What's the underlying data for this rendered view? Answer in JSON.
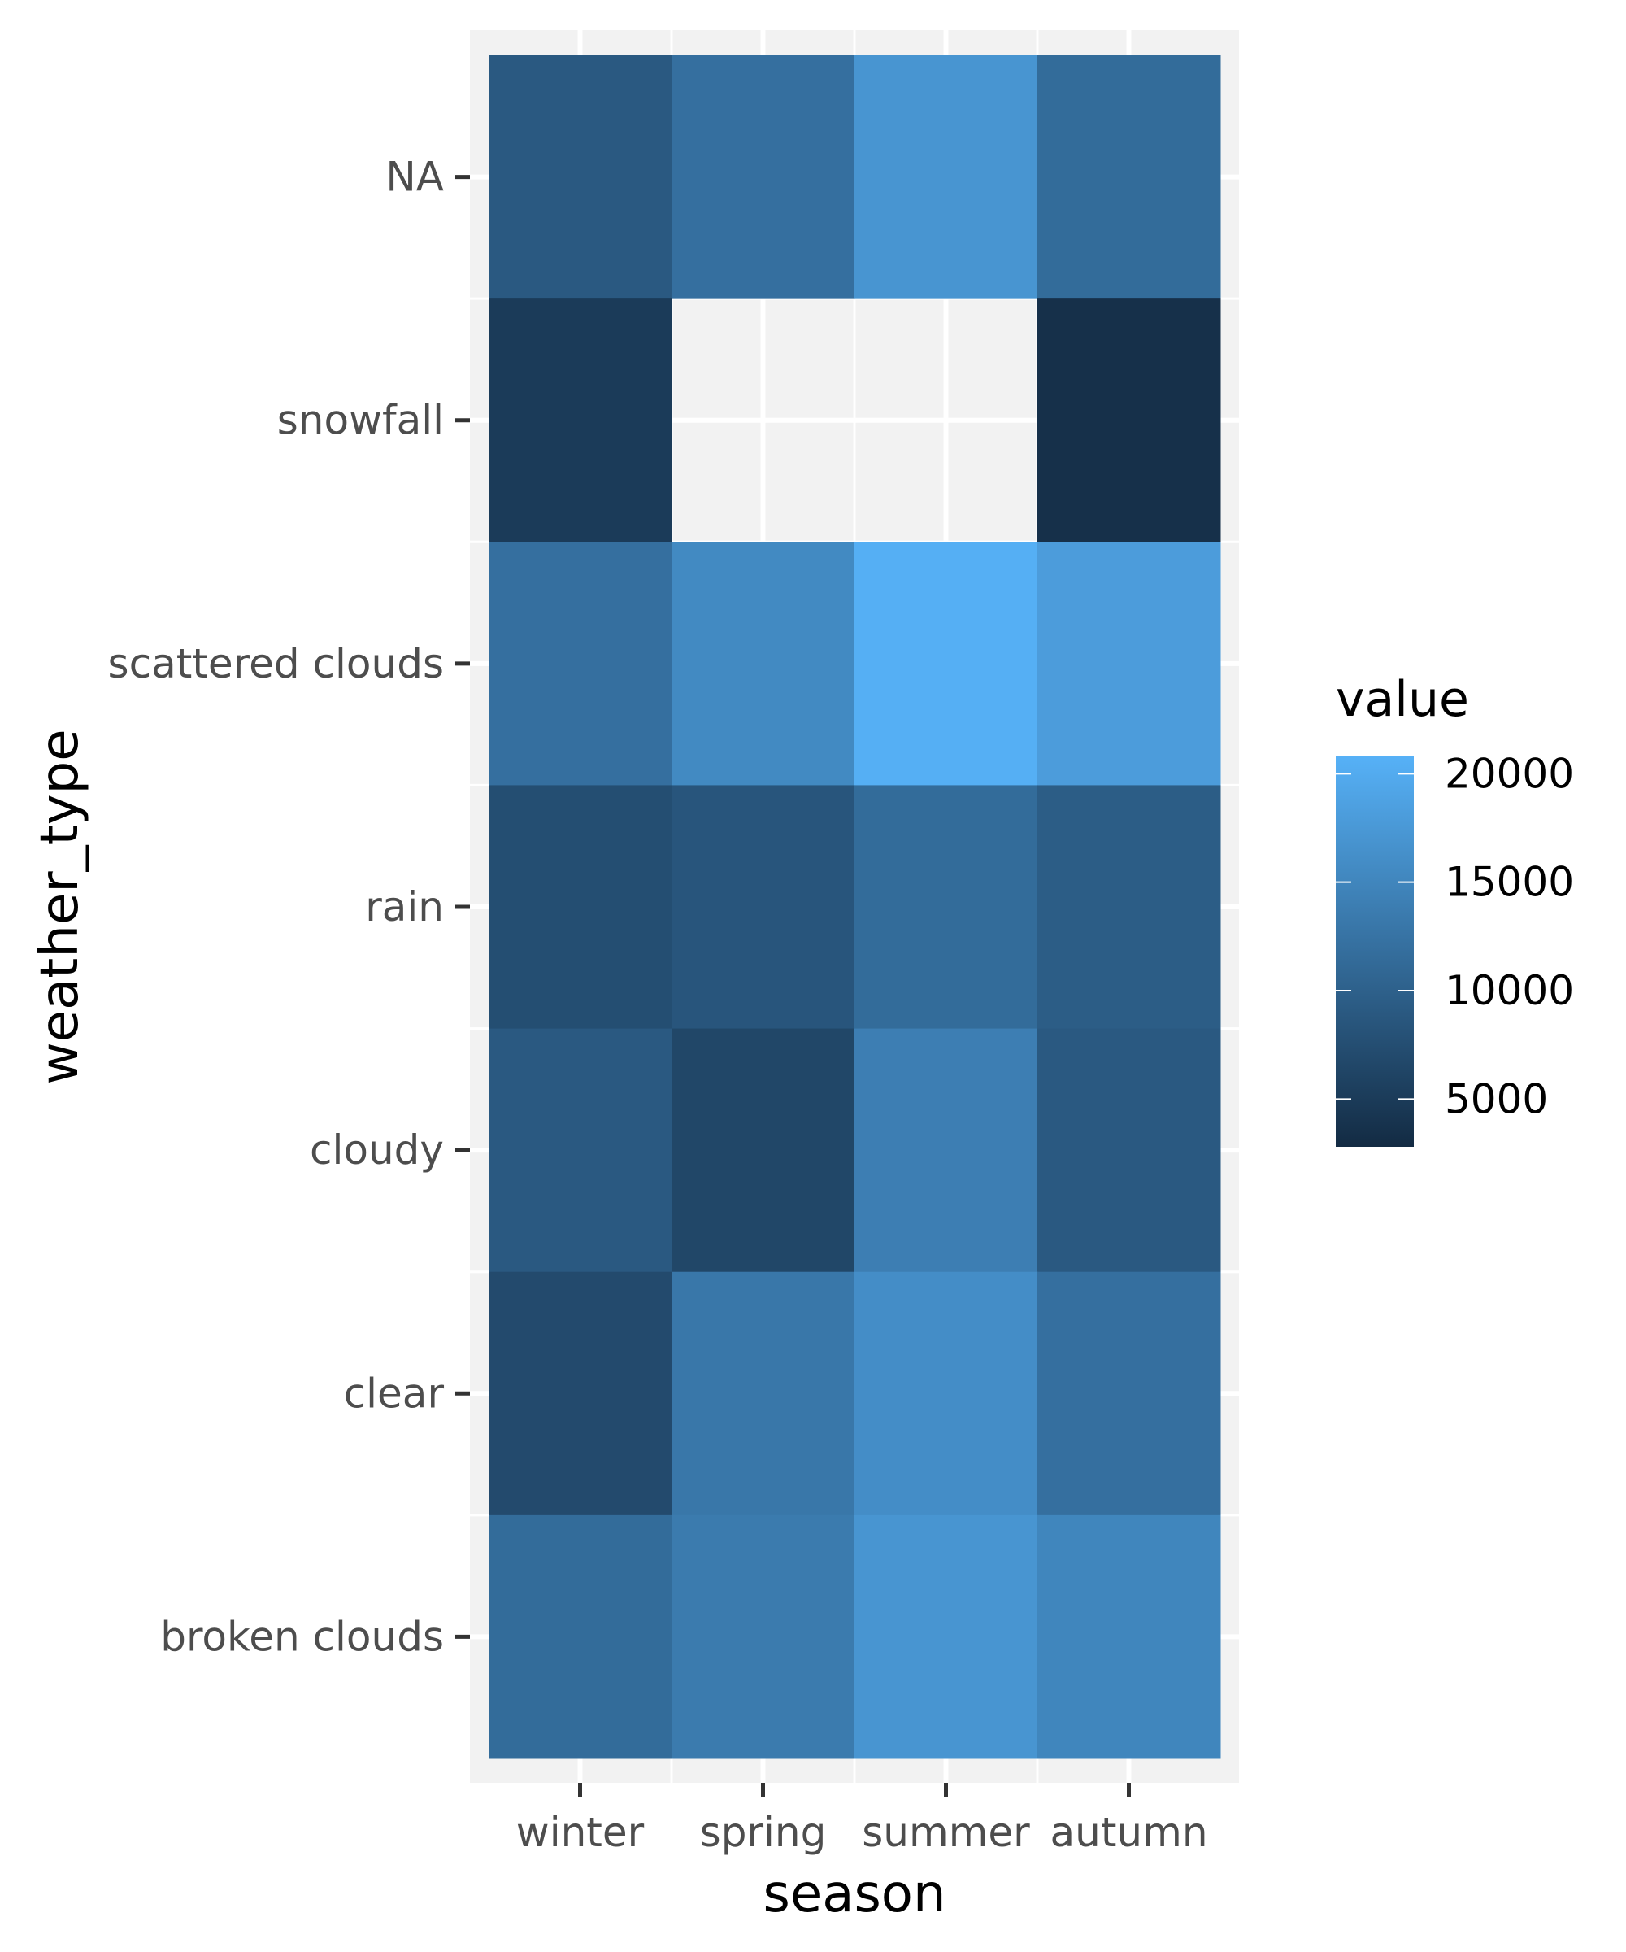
{
  "chart_data": {
    "type": "heatmap",
    "title": "",
    "xlabel": "season",
    "ylabel": "weather_type",
    "x_categories": [
      "winter",
      "spring",
      "summer",
      "autumn"
    ],
    "y_categories": [
      "NA",
      "snowfall",
      "scattered clouds",
      "rain",
      "cloudy",
      "clear",
      "broken clouds"
    ],
    "values": [
      [
        9000,
        12000,
        17000,
        11500
      ],
      [
        5000,
        null,
        null,
        3500
      ],
      [
        12000,
        15500,
        20500,
        18000
      ],
      [
        7500,
        8500,
        11500,
        9500
      ],
      [
        9000,
        6500,
        14000,
        9000
      ],
      [
        7000,
        13000,
        16000,
        12000
      ],
      [
        11500,
        13500,
        17000,
        15000
      ]
    ],
    "legend": {
      "title": "value",
      "ticks": [
        5000,
        10000,
        15000,
        20000
      ],
      "range": [
        2800,
        20800
      ],
      "low_color": "#132B43",
      "high_color": "#56B1F7",
      "placement": "right"
    },
    "grid": true,
    "panel_background": "#f2f2f2",
    "grid_color": "#ffffff"
  }
}
